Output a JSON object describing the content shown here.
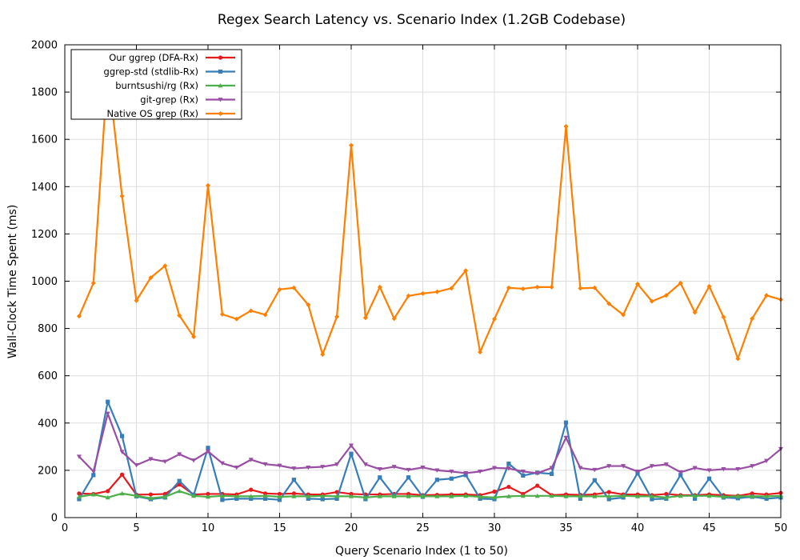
{
  "chart_data": {
    "type": "line",
    "title": "Regex Search Latency vs. Scenario Index (1.2GB Codebase)",
    "xlabel": "Query Scenario Index (1 to 50)",
    "ylabel": "Wall-Clock Time Spent (ms)",
    "xlim": [
      0,
      50
    ],
    "ylim": [
      0,
      2000
    ],
    "xticks": [
      0,
      5,
      10,
      15,
      20,
      25,
      30,
      35,
      40,
      45,
      50
    ],
    "yticks": [
      0,
      200,
      400,
      600,
      800,
      1000,
      1200,
      1400,
      1600,
      1800,
      2000
    ],
    "grid": true,
    "legend_position": "top-left",
    "x": [
      1,
      2,
      3,
      4,
      5,
      6,
      7,
      8,
      9,
      10,
      11,
      12,
      13,
      14,
      15,
      16,
      17,
      18,
      19,
      20,
      21,
      22,
      23,
      24,
      25,
      26,
      27,
      28,
      29,
      30,
      31,
      32,
      33,
      34,
      35,
      36,
      37,
      38,
      39,
      40,
      41,
      42,
      43,
      44,
      45,
      46,
      47,
      48,
      49,
      50
    ],
    "series": [
      {
        "name": "Our ggrep (DFA-Rx)",
        "color": "#e41a1c",
        "marker": "circle",
        "values": [
          102,
          100,
          112,
          182,
          97,
          98,
          100,
          140,
          98,
          100,
          100,
          98,
          118,
          102,
          100,
          102,
          98,
          98,
          108,
          100,
          98,
          98,
          100,
          100,
          95,
          96,
          98,
          98,
          95,
          110,
          130,
          100,
          135,
          95,
          98,
          96,
          98,
          108,
          98,
          98,
          95,
          100,
          95,
          95,
          98,
          95,
          92,
          102,
          98,
          104
        ]
      },
      {
        "name": "ggrep-std (stdlib-Rx)",
        "color": "#377eb8",
        "marker": "square",
        "values": [
          78,
          180,
          490,
          345,
          90,
          78,
          85,
          155,
          95,
          295,
          75,
          80,
          80,
          80,
          75,
          160,
          80,
          78,
          80,
          270,
          78,
          170,
          92,
          170,
          88,
          160,
          165,
          180,
          80,
          78,
          228,
          178,
          190,
          185,
          402,
          80,
          158,
          78,
          85,
          188,
          78,
          80,
          180,
          80,
          165,
          85,
          82,
          88,
          80,
          85
        ]
      },
      {
        "name": "burntsushi/rg (Rx)",
        "color": "#4daf4a",
        "marker": "triangle-up",
        "values": [
          88,
          98,
          85,
          102,
          92,
          82,
          88,
          112,
          92,
          88,
          92,
          90,
          90,
          92,
          88,
          90,
          90,
          92,
          90,
          90,
          85,
          90,
          90,
          90,
          90,
          90,
          90,
          92,
          88,
          85,
          90,
          92,
          92,
          92,
          90,
          90,
          90,
          90,
          92,
          90,
          90,
          85,
          92,
          92,
          92,
          88,
          90,
          90,
          90,
          92
        ]
      },
      {
        "name": "git-grep (Rx)",
        "color": "#984ea3",
        "marker": "triangle-down",
        "values": [
          258,
          195,
          440,
          278,
          222,
          248,
          237,
          268,
          242,
          280,
          230,
          212,
          245,
          226,
          220,
          208,
          212,
          215,
          225,
          305,
          225,
          205,
          215,
          202,
          212,
          200,
          195,
          188,
          195,
          210,
          208,
          195,
          188,
          210,
          338,
          210,
          202,
          218,
          218,
          195,
          218,
          225,
          192,
          210,
          200,
          205,
          205,
          218,
          240,
          290
        ]
      },
      {
        "name": "Native OS grep (Rx)",
        "color": "#ff7f00",
        "marker": "diamond",
        "values": [
          852,
          992,
          1895,
          1360,
          918,
          1015,
          1065,
          855,
          765,
          1405,
          860,
          840,
          875,
          858,
          965,
          972,
          900,
          690,
          850,
          1575,
          845,
          975,
          842,
          938,
          948,
          955,
          970,
          1045,
          700,
          840,
          972,
          968,
          975,
          975,
          1655,
          970,
          972,
          905,
          858,
          988,
          915,
          940,
          992,
          868,
          978,
          848,
          672,
          842,
          940,
          922
        ]
      }
    ]
  }
}
